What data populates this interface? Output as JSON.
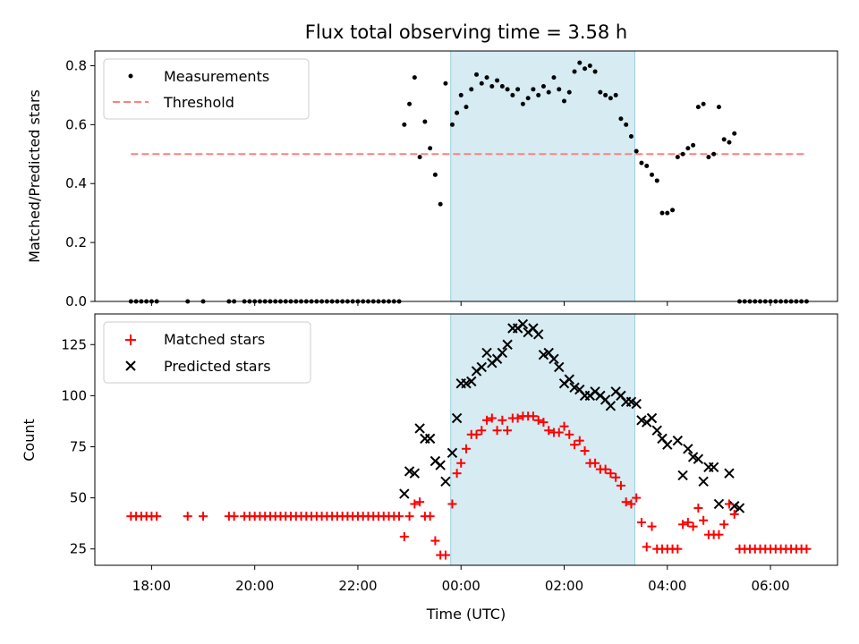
{
  "chart_data": [
    {
      "type": "scatter",
      "title": "Flux total observing time = 3.58 h",
      "xlabel": "",
      "ylabel": "Matched/Predicted stars",
      "ylim": [
        0,
        0.85
      ],
      "yticks": [
        "0.0",
        "0.2",
        "0.4",
        "0.6",
        "0.8"
      ],
      "ytick_values": [
        0,
        0.2,
        0.4,
        0.6,
        0.8
      ],
      "legend_position": "top-left",
      "shaded_interval_hours": [
        23.8,
        27.37
      ],
      "shade_color": "#add8e6",
      "series": [
        {
          "name": "Measurements",
          "marker": "dot",
          "color": "#000000",
          "x": [
            17.6,
            17.7,
            17.8,
            17.9,
            18.0,
            18.1,
            18.7,
            19.0,
            19.5,
            19.6,
            19.8,
            19.9,
            20.0,
            20.1,
            20.2,
            20.3,
            20.4,
            20.5,
            20.6,
            20.7,
            20.8,
            20.9,
            21.0,
            21.1,
            21.2,
            21.3,
            21.4,
            21.5,
            21.6,
            21.7,
            21.8,
            21.9,
            22.0,
            22.1,
            22.2,
            22.3,
            22.4,
            22.5,
            22.6,
            22.7,
            22.8,
            22.9,
            23.0,
            23.1,
            23.2,
            23.3,
            23.4,
            23.5,
            23.6,
            23.7,
            23.83,
            23.92,
            24.0,
            24.1,
            24.2,
            24.3,
            24.4,
            24.5,
            24.6,
            24.7,
            24.8,
            24.9,
            25.0,
            25.1,
            25.2,
            25.3,
            25.4,
            25.5,
            25.6,
            25.7,
            25.8,
            25.9,
            26.0,
            26.1,
            26.2,
            26.3,
            26.4,
            26.5,
            26.6,
            26.7,
            26.8,
            26.9,
            27.0,
            27.1,
            27.2,
            27.3,
            27.4,
            27.5,
            27.6,
            27.7,
            27.8,
            27.9,
            28.0,
            28.1,
            28.2,
            28.3,
            28.4,
            28.5,
            28.6,
            28.7,
            28.8,
            28.9,
            29.0,
            29.1,
            29.2,
            29.3,
            29.4,
            29.5,
            29.6,
            29.7,
            29.8,
            29.9,
            30.0,
            30.1,
            30.2,
            30.3,
            30.4,
            30.5,
            30.6,
            30.7
          ],
          "y": [
            0,
            0,
            0,
            0,
            0,
            0,
            0,
            0,
            0,
            0,
            0,
            0,
            0,
            0,
            0,
            0,
            0,
            0,
            0,
            0,
            0,
            0,
            0,
            0,
            0,
            0,
            0,
            0,
            0,
            0,
            0,
            0,
            0,
            0,
            0,
            0,
            0,
            0,
            0,
            0,
            0,
            0.6,
            0.67,
            0.76,
            0.49,
            0.61,
            0.52,
            0.43,
            0.33,
            0.74,
            0.6,
            0.64,
            0.7,
            0.66,
            0.72,
            0.77,
            0.74,
            0.76,
            0.73,
            0.75,
            0.73,
            0.72,
            0.7,
            0.72,
            0.67,
            0.69,
            0.72,
            0.7,
            0.73,
            0.71,
            0.76,
            0.72,
            0.68,
            0.71,
            0.78,
            0.81,
            0.79,
            0.8,
            0.78,
            0.71,
            0.7,
            0.69,
            0.7,
            0.62,
            0.6,
            0.56,
            0.51,
            0.47,
            0.46,
            0.43,
            0.41,
            0.3,
            0.3,
            0.31,
            0.49,
            0.5,
            0.52,
            0.53,
            0.66,
            0.67,
            0.49,
            0.5,
            0.66,
            0.55,
            0.54,
            0.57,
            0.0,
            0.0,
            0.0,
            0.0,
            0.0,
            0.0,
            0.0,
            0.0,
            0.0,
            0.0,
            0.0,
            0.0,
            0.0,
            0.0
          ]
        },
        {
          "name": "Threshold",
          "marker": "dashed-line",
          "color": "#ff7f7f",
          "x": [
            17.6,
            30.7
          ],
          "y": [
            0.5,
            0.5
          ]
        }
      ]
    },
    {
      "type": "scatter",
      "title": "",
      "xlabel": "Time (UTC)",
      "ylabel": "Count",
      "ylim": [
        17,
        140
      ],
      "xlim_hours": [
        16.9,
        31.3
      ],
      "xticks": [
        "18:00",
        "20:00",
        "22:00",
        "00:00",
        "02:00",
        "04:00",
        "06:00"
      ],
      "xtick_hours": [
        18,
        20,
        22,
        24,
        26,
        28,
        30
      ],
      "yticks": [
        "25",
        "50",
        "75",
        "100",
        "125"
      ],
      "ytick_values": [
        25,
        50,
        75,
        100,
        125
      ],
      "legend_position": "top-left",
      "shaded_interval_hours": [
        23.8,
        27.37
      ],
      "shade_color": "#add8e6",
      "series": [
        {
          "name": "Matched stars",
          "marker": "plus",
          "color": "#ff0000",
          "x": [
            17.6,
            17.7,
            17.8,
            17.9,
            18.0,
            18.1,
            18.7,
            19.0,
            19.5,
            19.6,
            19.8,
            19.9,
            20.0,
            20.1,
            20.2,
            20.3,
            20.4,
            20.5,
            20.6,
            20.7,
            20.8,
            20.9,
            21.0,
            21.1,
            21.2,
            21.3,
            21.4,
            21.5,
            21.6,
            21.7,
            21.8,
            21.9,
            22.0,
            22.1,
            22.2,
            22.3,
            22.4,
            22.5,
            22.6,
            22.7,
            22.8,
            22.9,
            23.0,
            23.1,
            23.2,
            23.3,
            23.4,
            23.5,
            23.6,
            23.7,
            23.83,
            23.92,
            24.0,
            24.1,
            24.2,
            24.3,
            24.4,
            24.5,
            24.6,
            24.7,
            24.8,
            24.9,
            25.0,
            25.1,
            25.2,
            25.3,
            25.4,
            25.5,
            25.6,
            25.7,
            25.8,
            25.9,
            26.0,
            26.1,
            26.2,
            26.3,
            26.4,
            26.5,
            26.6,
            26.7,
            26.8,
            26.9,
            27.0,
            27.1,
            27.2,
            27.3,
            27.4,
            27.5,
            27.6,
            27.7,
            27.8,
            27.9,
            28.0,
            28.1,
            28.2,
            28.3,
            28.4,
            28.5,
            28.6,
            28.7,
            28.8,
            28.9,
            29.0,
            29.1,
            29.2,
            29.3,
            29.4,
            29.5,
            29.6,
            29.7,
            29.8,
            29.9,
            30.0,
            30.1,
            30.2,
            30.3,
            30.4,
            30.5,
            30.6,
            30.7
          ],
          "y": [
            41,
            41,
            41,
            41,
            41,
            41,
            41,
            41,
            41,
            41,
            41,
            41,
            41,
            41,
            41,
            41,
            41,
            41,
            41,
            41,
            41,
            41,
            41,
            41,
            41,
            41,
            41,
            41,
            41,
            41,
            41,
            41,
            41,
            41,
            41,
            41,
            41,
            41,
            41,
            41,
            41,
            31,
            41,
            47,
            48,
            41,
            41,
            29,
            22,
            22,
            47,
            62,
            67,
            74,
            81,
            81,
            83,
            88,
            89,
            83,
            88,
            83,
            89,
            89,
            90,
            90,
            90,
            88,
            87,
            83,
            82,
            82,
            85,
            81,
            76,
            78,
            73,
            67,
            67,
            64,
            64,
            62,
            60,
            56,
            48,
            47,
            50,
            38,
            26,
            36,
            25,
            25,
            25,
            25,
            25,
            37,
            38,
            36,
            45,
            39,
            32,
            32,
            32,
            37,
            47,
            42,
            25,
            25,
            25,
            25,
            25,
            25,
            25,
            25,
            25,
            25,
            25,
            25,
            25,
            25
          ],
          "connect": false
        },
        {
          "name": "Predicted stars",
          "marker": "x",
          "color": "#000000",
          "x": [
            22.9,
            23.0,
            23.1,
            23.2,
            23.3,
            23.4,
            23.5,
            23.6,
            23.7,
            23.83,
            23.92,
            24.0,
            24.1,
            24.2,
            24.3,
            24.4,
            24.5,
            24.6,
            24.7,
            24.8,
            24.9,
            25.0,
            25.1,
            25.2,
            25.3,
            25.4,
            25.5,
            25.6,
            25.7,
            25.8,
            25.9,
            26.0,
            26.1,
            26.2,
            26.3,
            26.4,
            26.5,
            26.6,
            26.7,
            26.8,
            26.9,
            27.0,
            27.1,
            27.2,
            27.3,
            27.4,
            27.5,
            27.6,
            27.7,
            27.8,
            27.9,
            28.0,
            28.2,
            28.3,
            28.4,
            28.5,
            28.6,
            28.7,
            28.8,
            28.9,
            29.0,
            29.2,
            29.3,
            29.4
          ],
          "y": [
            52,
            63,
            62,
            84,
            79,
            79,
            68,
            66,
            58,
            72,
            89,
            106,
            106,
            107,
            112,
            114,
            121,
            116,
            118,
            121,
            125,
            133,
            133,
            135,
            131,
            133,
            130,
            120,
            121,
            118,
            114,
            106,
            108,
            104,
            103,
            100,
            100,
            102,
            100,
            98,
            95,
            102,
            100,
            97,
            97,
            96,
            88,
            87,
            89,
            83,
            79,
            76,
            78,
            61,
            74,
            70,
            69,
            58,
            65,
            65,
            47,
            62,
            46,
            45
          ]
        }
      ]
    }
  ]
}
